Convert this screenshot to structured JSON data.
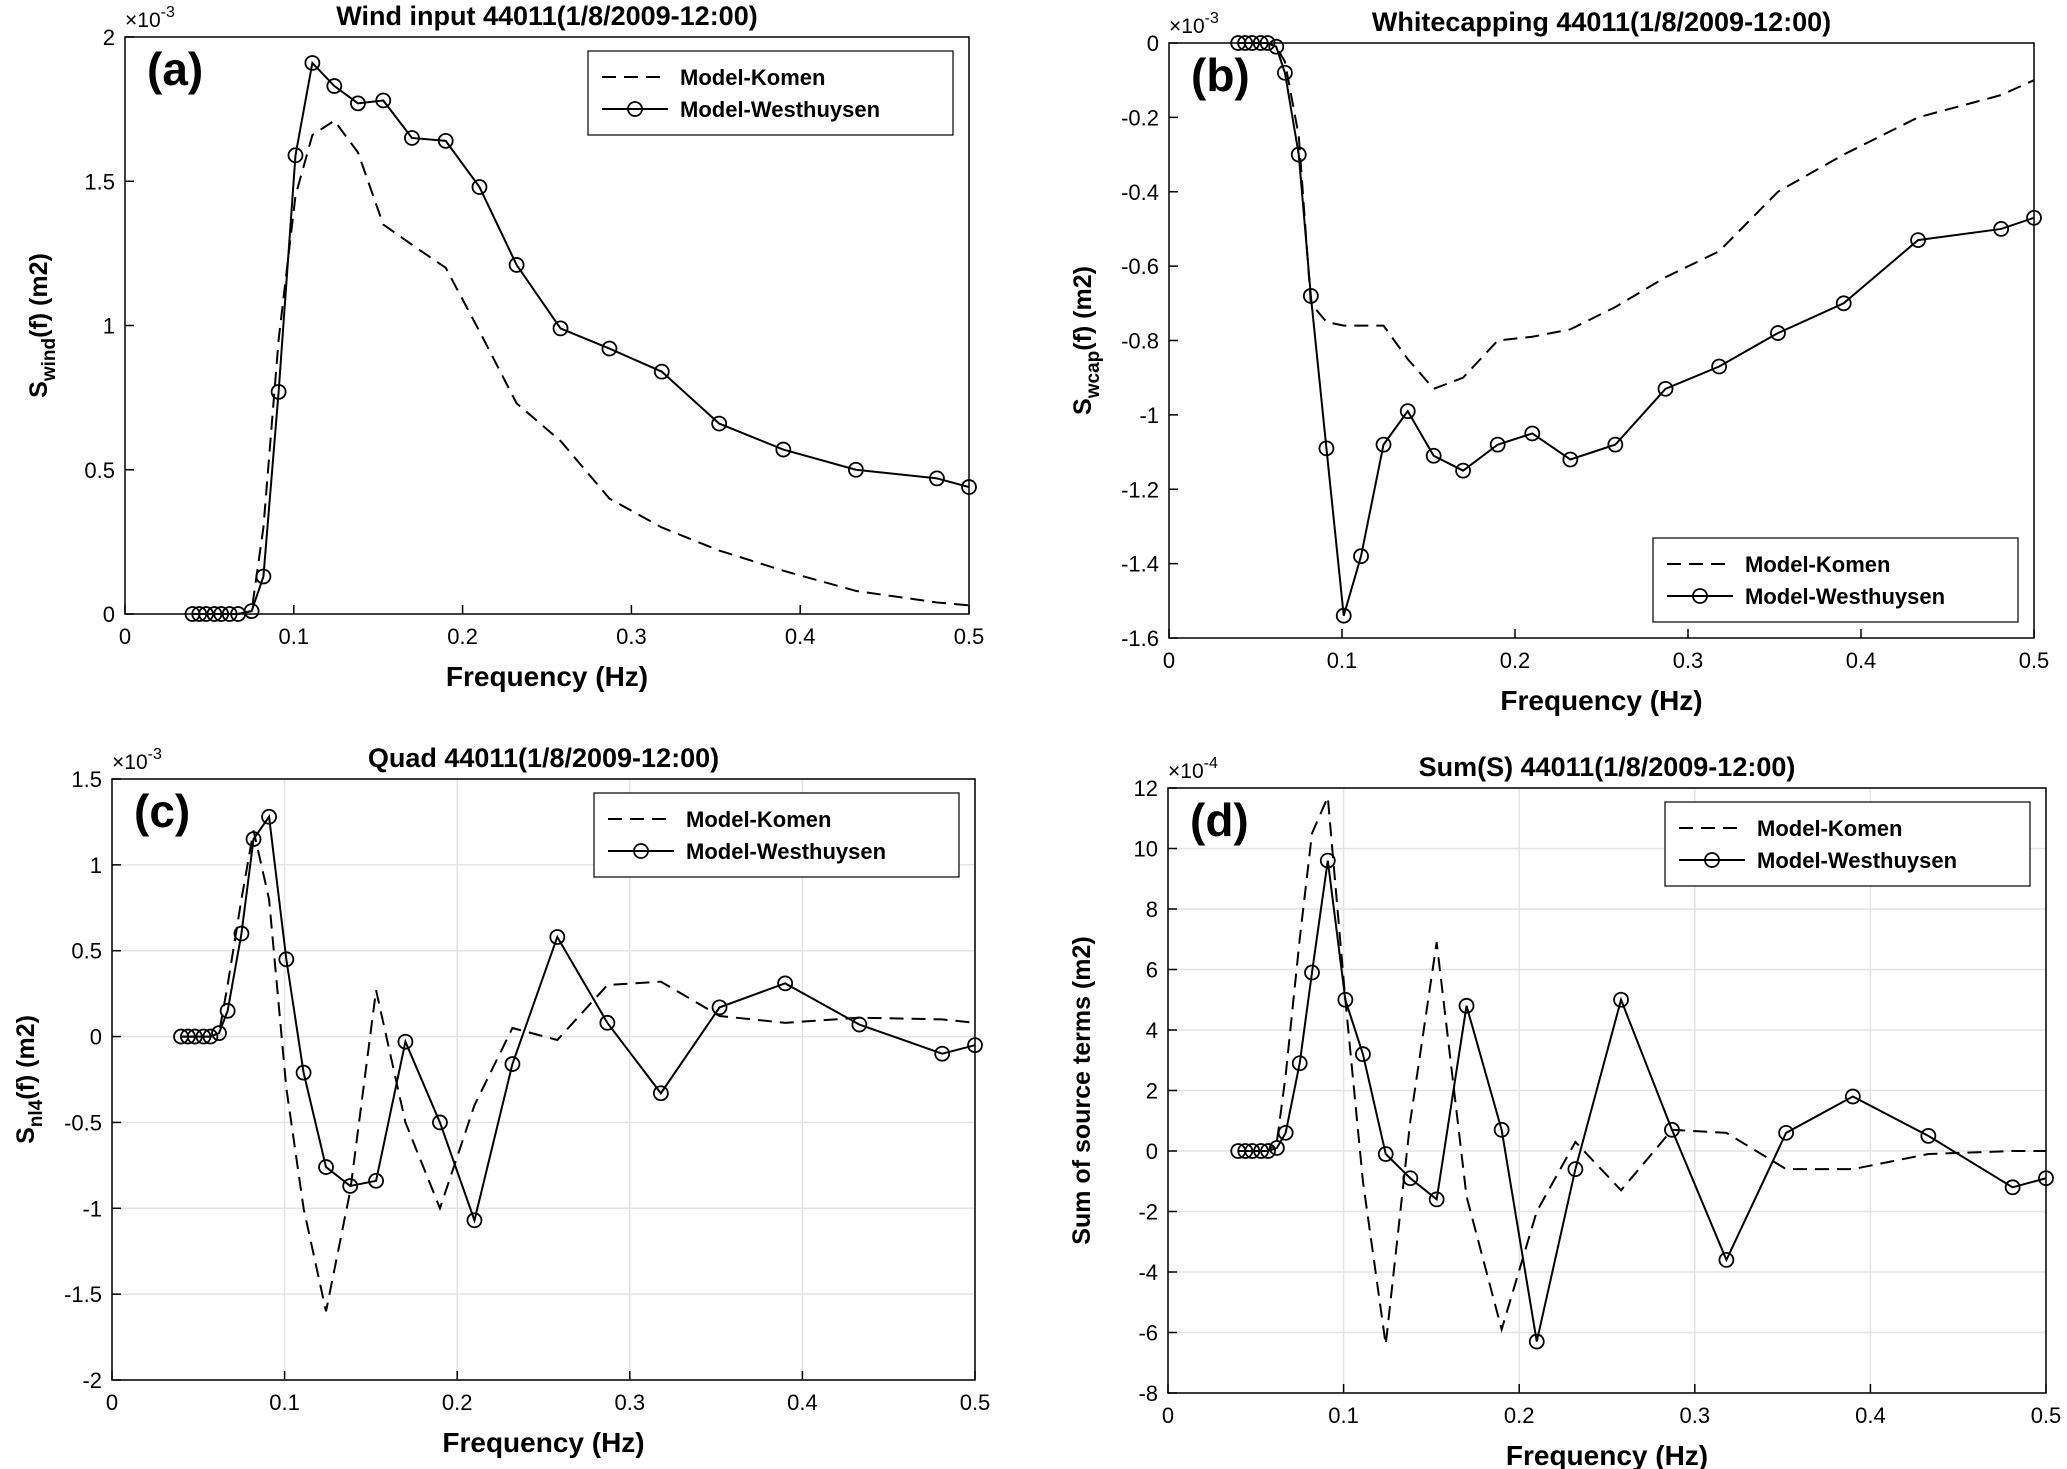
{
  "chart_data": [
    {
      "type": "line",
      "label": "(a)",
      "title": "Wind input 44011(1/8/2009-12:00)",
      "xlabel": "Frequency (Hz)",
      "ylabel": [
        "S",
        "wind",
        "(f) (m2)"
      ],
      "multiplier": [
        "×10",
        "-3"
      ],
      "xlim": [
        0,
        0.5
      ],
      "xticks": [
        0,
        0.1,
        0.2,
        0.3,
        0.4,
        0.5
      ],
      "ylim": [
        0,
        2
      ],
      "yticks": [
        0,
        0.5,
        1,
        1.5,
        2
      ],
      "grid": false,
      "legend": "upper right",
      "x": [
        0.04,
        0.044,
        0.048,
        0.053,
        0.057,
        0.062,
        0.067,
        0.075,
        0.082,
        0.091,
        0.101,
        0.111,
        0.124,
        0.138,
        0.153,
        0.17,
        0.19,
        0.21,
        0.232,
        0.258,
        0.287,
        0.318,
        0.352,
        0.39,
        0.433,
        0.481,
        0.5
      ],
      "series": [
        {
          "name": "Model-Komen",
          "color": "#000000",
          "linestyle": "dashed",
          "marker": "none",
          "values": [
            0,
            0,
            0,
            0,
            0,
            0,
            0,
            0.01,
            0.3,
            0.95,
            1.45,
            1.66,
            1.71,
            1.6,
            1.35,
            1.28,
            1.2,
            0.98,
            0.73,
            0.6,
            0.4,
            0.3,
            0.22,
            0.15,
            0.08,
            0.04,
            0.03
          ]
        },
        {
          "name": "Model-Westhuysen",
          "color": "#000000",
          "linestyle": "solid",
          "marker": "circle",
          "values": [
            0,
            0,
            0,
            0,
            0,
            0,
            0,
            0.01,
            0.13,
            0.77,
            1.59,
            1.91,
            1.83,
            1.77,
            1.78,
            1.65,
            1.64,
            1.48,
            1.21,
            0.99,
            0.92,
            0.84,
            0.66,
            0.57,
            0.5,
            0.47,
            0.44
          ]
        }
      ]
    },
    {
      "type": "line",
      "label": "(b)",
      "title": "Whitecapping 44011(1/8/2009-12:00)",
      "xlabel": "Frequency (Hz)",
      "ylabel": [
        "S",
        "wcap",
        "(f) (m2)"
      ],
      "multiplier": [
        "×10",
        "-3"
      ],
      "xlim": [
        0,
        0.5
      ],
      "xticks": [
        0,
        0.1,
        0.2,
        0.3,
        0.4,
        0.5
      ],
      "ylim": [
        -1.6,
        0
      ],
      "yticks": [
        -1.6,
        -1.4,
        -1.2,
        -1,
        -0.8,
        -0.6,
        -0.4,
        -0.2,
        0
      ],
      "grid": false,
      "legend": "lower right",
      "x": [
        0.04,
        0.044,
        0.048,
        0.053,
        0.057,
        0.062,
        0.067,
        0.075,
        0.082,
        0.091,
        0.101,
        0.111,
        0.124,
        0.138,
        0.153,
        0.17,
        0.19,
        0.21,
        0.232,
        0.258,
        0.287,
        0.318,
        0.352,
        0.39,
        0.433,
        0.481,
        0.5
      ],
      "series": [
        {
          "name": "Model-Komen",
          "color": "#000000",
          "linestyle": "dashed",
          "marker": "none",
          "values": [
            0,
            0,
            0,
            0,
            0,
            -0.01,
            -0.05,
            -0.25,
            -0.7,
            -0.75,
            -0.76,
            -0.76,
            -0.76,
            -0.85,
            -0.93,
            -0.9,
            -0.8,
            -0.79,
            -0.77,
            -0.71,
            -0.63,
            -0.56,
            -0.4,
            -0.3,
            -0.2,
            -0.14,
            -0.1
          ]
        },
        {
          "name": "Model-Westhuysen",
          "color": "#000000",
          "linestyle": "solid",
          "marker": "circle",
          "values": [
            0,
            0,
            0,
            0,
            0,
            -0.01,
            -0.08,
            -0.3,
            -0.68,
            -1.09,
            -1.54,
            -1.38,
            -1.08,
            -0.99,
            -1.11,
            -1.15,
            -1.08,
            -1.05,
            -1.12,
            -1.08,
            -0.93,
            -0.87,
            -0.78,
            -0.7,
            -0.53,
            -0.5,
            -0.47
          ]
        }
      ]
    },
    {
      "type": "line",
      "label": "(c)",
      "title": "Quad  44011(1/8/2009-12:00)",
      "xlabel": "Frequency (Hz)",
      "ylabel": [
        "S",
        "nl4",
        "(f) (m2)"
      ],
      "multiplier": [
        "×10",
        "-3"
      ],
      "xlim": [
        0,
        0.5
      ],
      "xticks": [
        0,
        0.1,
        0.2,
        0.3,
        0.4,
        0.5
      ],
      "ylim": [
        -2,
        1.5
      ],
      "yticks": [
        -2,
        -1.5,
        -1,
        -0.5,
        0,
        0.5,
        1,
        1.5
      ],
      "grid": true,
      "legend": "upper right",
      "x": [
        0.04,
        0.044,
        0.048,
        0.053,
        0.057,
        0.062,
        0.067,
        0.075,
        0.082,
        0.091,
        0.101,
        0.111,
        0.124,
        0.138,
        0.153,
        0.17,
        0.19,
        0.21,
        0.232,
        0.258,
        0.287,
        0.318,
        0.352,
        0.39,
        0.433,
        0.481,
        0.5
      ],
      "series": [
        {
          "name": "Model-Komen",
          "color": "#000000",
          "linestyle": "dashed",
          "marker": "none",
          "values": [
            0,
            0,
            0,
            0,
            0,
            0.02,
            0.3,
            0.8,
            1.2,
            0.8,
            -0.3,
            -1.0,
            -1.6,
            -0.9,
            0.27,
            -0.5,
            -1.0,
            -0.4,
            0.05,
            -0.02,
            0.3,
            0.32,
            0.12,
            0.08,
            0.11,
            0.1,
            0.08
          ]
        },
        {
          "name": "Model-Westhuysen",
          "color": "#000000",
          "linestyle": "solid",
          "marker": "circle",
          "values": [
            0,
            0,
            0,
            0,
            0,
            0.02,
            0.15,
            0.6,
            1.15,
            1.28,
            0.45,
            -0.21,
            -0.76,
            -0.87,
            -0.84,
            -0.03,
            -0.5,
            -1.07,
            -0.16,
            0.58,
            0.08,
            -0.33,
            0.17,
            0.31,
            0.07,
            -0.1,
            -0.05
          ]
        }
      ]
    },
    {
      "type": "line",
      "label": "(d)",
      "title": "Sum(S)  44011(1/8/2009-12:00)",
      "xlabel": "Frequency (Hz)",
      "ylabel": [
        "Sum of source terms (m2)"
      ],
      "multiplier": [
        "×10",
        "-4"
      ],
      "xlim": [
        0,
        0.5
      ],
      "xticks": [
        0,
        0.1,
        0.2,
        0.3,
        0.4,
        0.5
      ],
      "ylim": [
        -8,
        12
      ],
      "yticks": [
        -8,
        -6,
        -4,
        -2,
        0,
        2,
        4,
        6,
        8,
        10,
        12
      ],
      "grid": true,
      "legend": "upper right",
      "x": [
        0.04,
        0.044,
        0.048,
        0.053,
        0.057,
        0.062,
        0.067,
        0.075,
        0.082,
        0.091,
        0.101,
        0.111,
        0.124,
        0.138,
        0.153,
        0.17,
        0.19,
        0.21,
        0.232,
        0.258,
        0.287,
        0.318,
        0.352,
        0.39,
        0.433,
        0.481,
        0.5
      ],
      "series": [
        {
          "name": "Model-Komen",
          "color": "#000000",
          "linestyle": "dashed",
          "marker": "none",
          "values": [
            0,
            0,
            0,
            0,
            0,
            0.3,
            2.5,
            7,
            10.5,
            11.7,
            5,
            -1,
            -6.4,
            1,
            6.9,
            -1.5,
            -5.9,
            -2,
            0.3,
            -1.3,
            0.7,
            0.6,
            -0.6,
            -0.6,
            -0.1,
            0,
            0
          ]
        },
        {
          "name": "Model-Westhuysen",
          "color": "#000000",
          "linestyle": "solid",
          "marker": "circle",
          "values": [
            0,
            0,
            0,
            0,
            0,
            0.1,
            0.6,
            2.9,
            5.9,
            9.6,
            5.0,
            3.2,
            -0.1,
            -0.9,
            -1.6,
            4.8,
            0.7,
            -6.3,
            -0.6,
            5.0,
            0.7,
            -3.6,
            0.6,
            1.8,
            0.5,
            -1.2,
            -0.9
          ]
        }
      ]
    }
  ]
}
